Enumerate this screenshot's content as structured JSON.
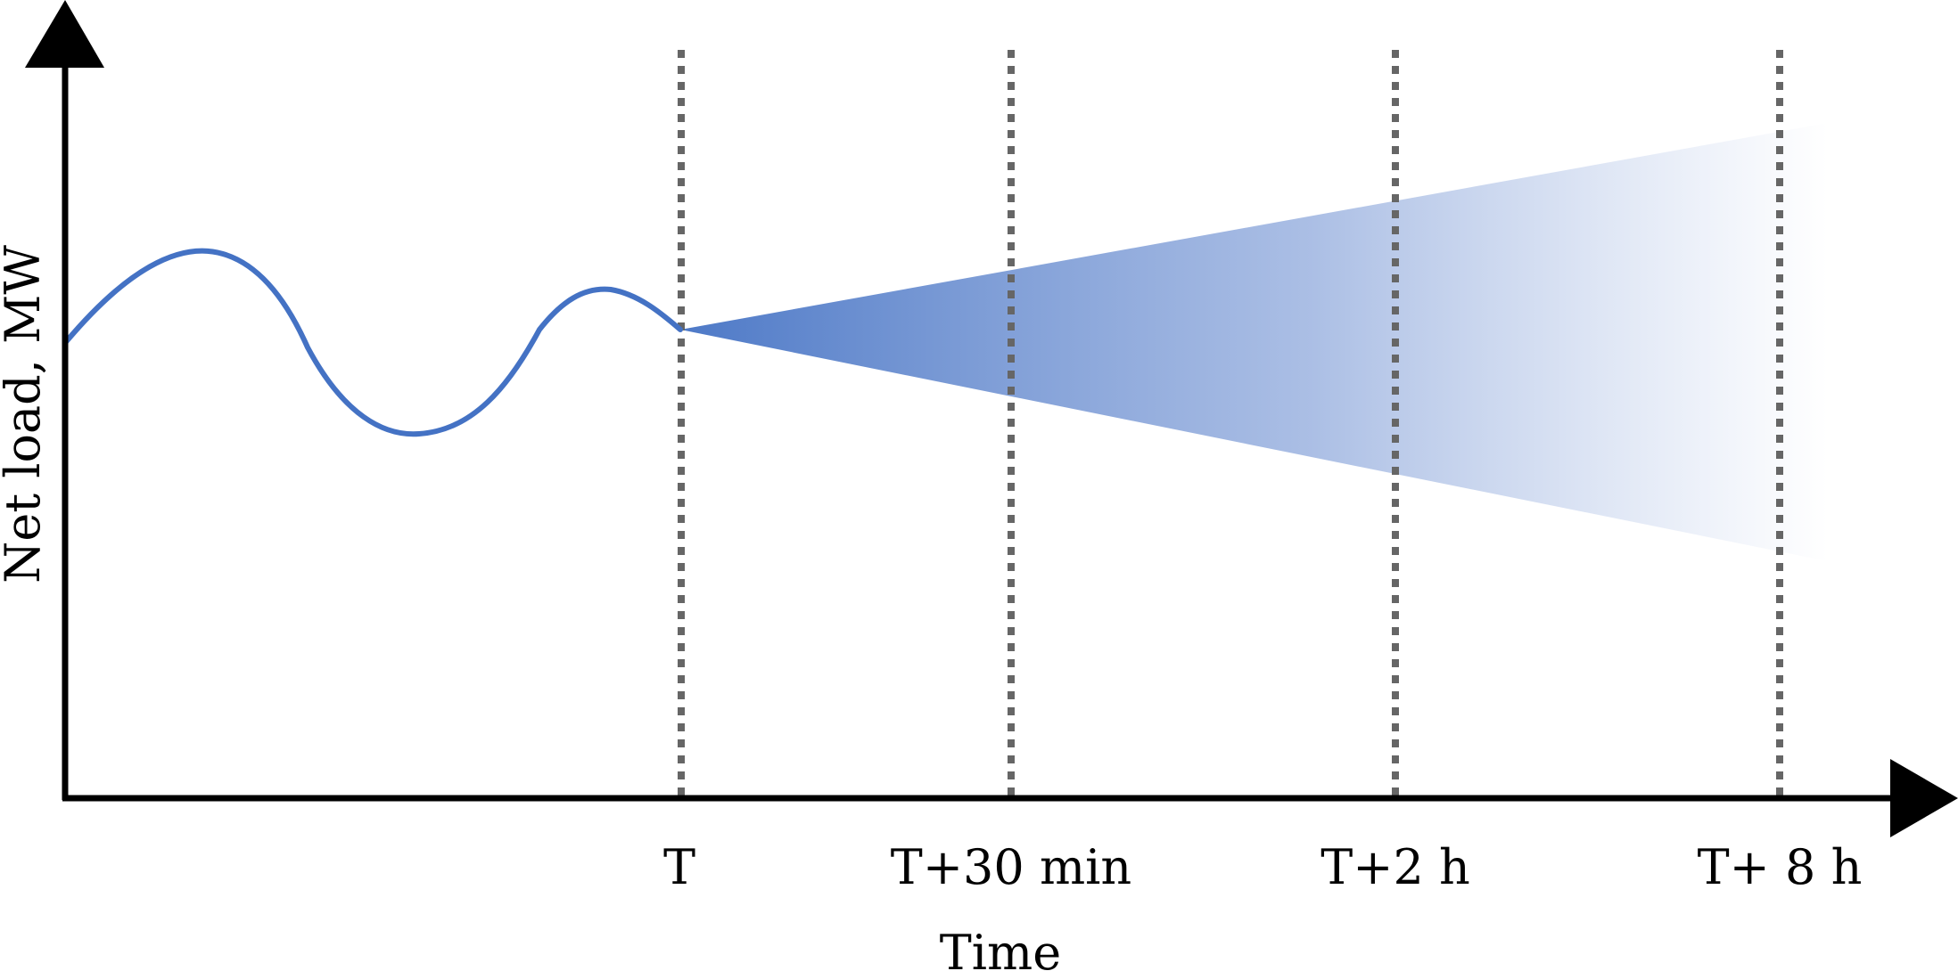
{
  "diagram": {
    "y_axis_label": "Net load, MW",
    "x_axis_label": "Time",
    "time_markers": [
      {
        "id": "t0",
        "label": "T"
      },
      {
        "id": "t30min",
        "label": "T+30 min"
      },
      {
        "id": "t2h",
        "label": "T+2 h"
      },
      {
        "id": "t8h",
        "label": "T+ 8 h"
      }
    ],
    "colors": {
      "load_curve": "#4472c4",
      "uncertainty_cone_start": "#4472c4",
      "uncertainty_cone_end": "#ffffff",
      "marker_lines": "#666666",
      "axes": "#000000"
    }
  }
}
